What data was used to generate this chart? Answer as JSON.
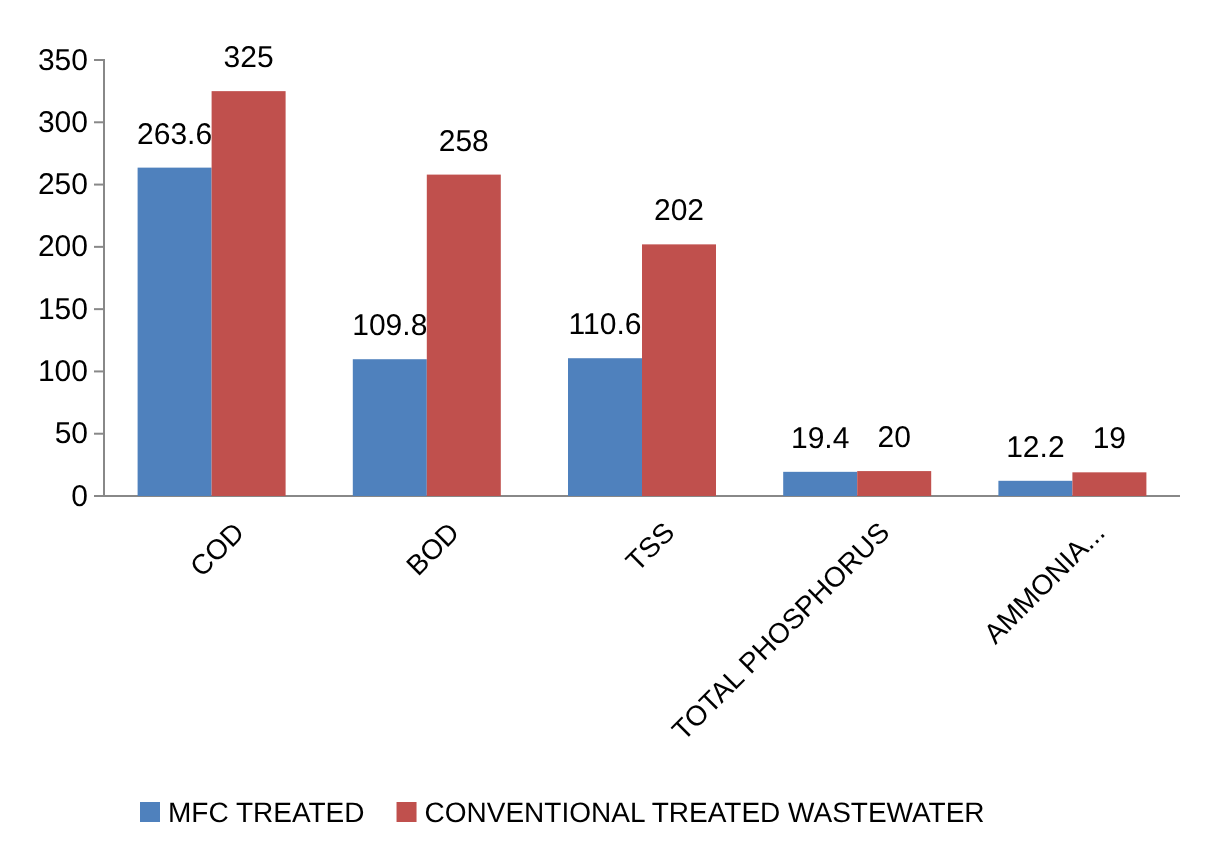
{
  "chart_data": {
    "type": "bar",
    "categories": [
      "COD",
      "BOD",
      "TSS",
      "TOTAL PHOSPHORUS",
      "AMMONIA..."
    ],
    "series": [
      {
        "name": "MFC TREATED",
        "color": "#4f81bd",
        "values": [
          263.6,
          109.8,
          110.6,
          19.4,
          12.2
        ]
      },
      {
        "name": "CONVENTIONAL TREATED WASTEWATER",
        "color": "#c0504d",
        "values": [
          325,
          258,
          202,
          20,
          19
        ]
      }
    ],
    "ylim": [
      0,
      350
    ],
    "yticks": [
      0,
      50,
      100,
      150,
      200,
      250,
      300,
      350
    ],
    "data_labels": true,
    "grid": false,
    "legend": "bottom"
  }
}
